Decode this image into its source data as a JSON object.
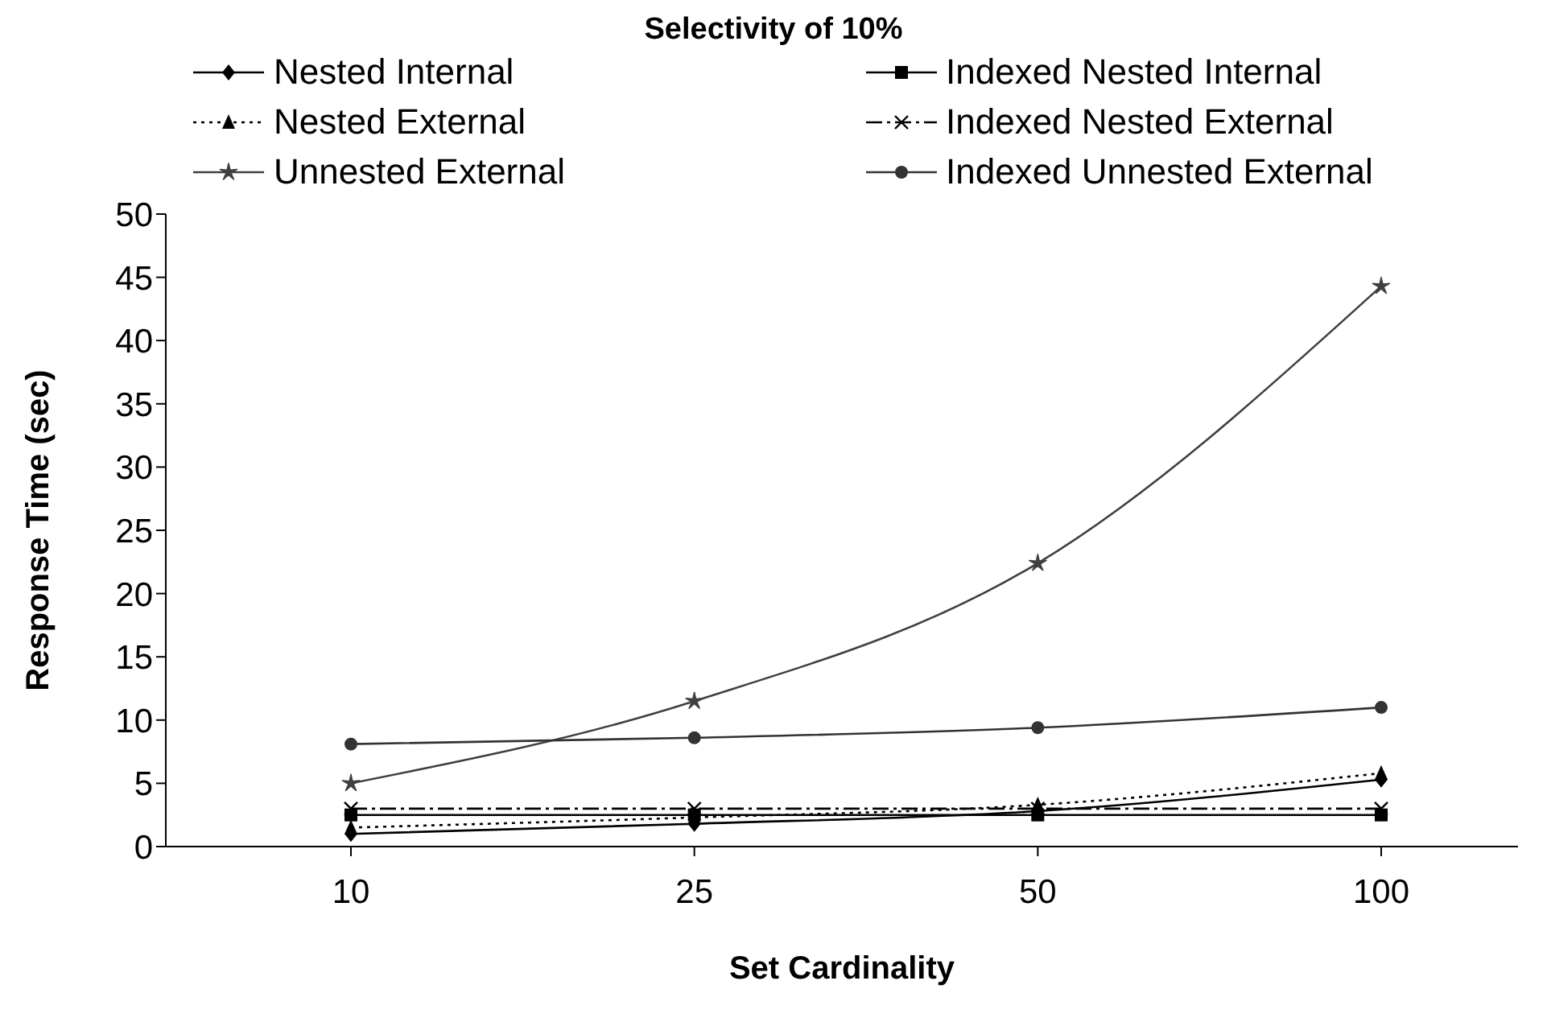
{
  "chart_data": {
    "type": "line",
    "title": "Selectivity of 10%",
    "xlabel": "Set Cardinality",
    "ylabel": "Response Time (sec)",
    "categories": [
      "10",
      "25",
      "50",
      "100"
    ],
    "series": [
      {
        "name": "Nested Internal",
        "color": "#000000",
        "marker": "diamond",
        "line_style": "solid",
        "values": [
          1.0,
          1.8,
          2.8,
          5.3
        ]
      },
      {
        "name": "Indexed Nested Internal",
        "color": "#000000",
        "marker": "square",
        "line_style": "solid",
        "values": [
          2.5,
          2.5,
          2.5,
          2.5
        ]
      },
      {
        "name": "Nested External",
        "color": "#000000",
        "marker": "triangle",
        "line_style": "dotted",
        "values": [
          1.5,
          2.3,
          3.3,
          5.8
        ]
      },
      {
        "name": "Indexed Nested External",
        "color": "#000000",
        "marker": "cross",
        "line_style": "dashed",
        "values": [
          3.0,
          3.0,
          3.0,
          3.0
        ]
      },
      {
        "name": "Unnested External",
        "color": "#404040",
        "marker": "star",
        "line_style": "solid",
        "values": [
          5.0,
          11.5,
          22.4,
          44.3
        ]
      },
      {
        "name": "Indexed Unnested External",
        "color": "#333333",
        "marker": "circle",
        "line_style": "solid",
        "values": [
          8.1,
          8.6,
          9.4,
          11.0
        ]
      }
    ],
    "ylim": [
      0,
      50
    ],
    "yticks": [
      0,
      5,
      10,
      15,
      20,
      25,
      30,
      35,
      40,
      45,
      50
    ],
    "legend": "top"
  }
}
